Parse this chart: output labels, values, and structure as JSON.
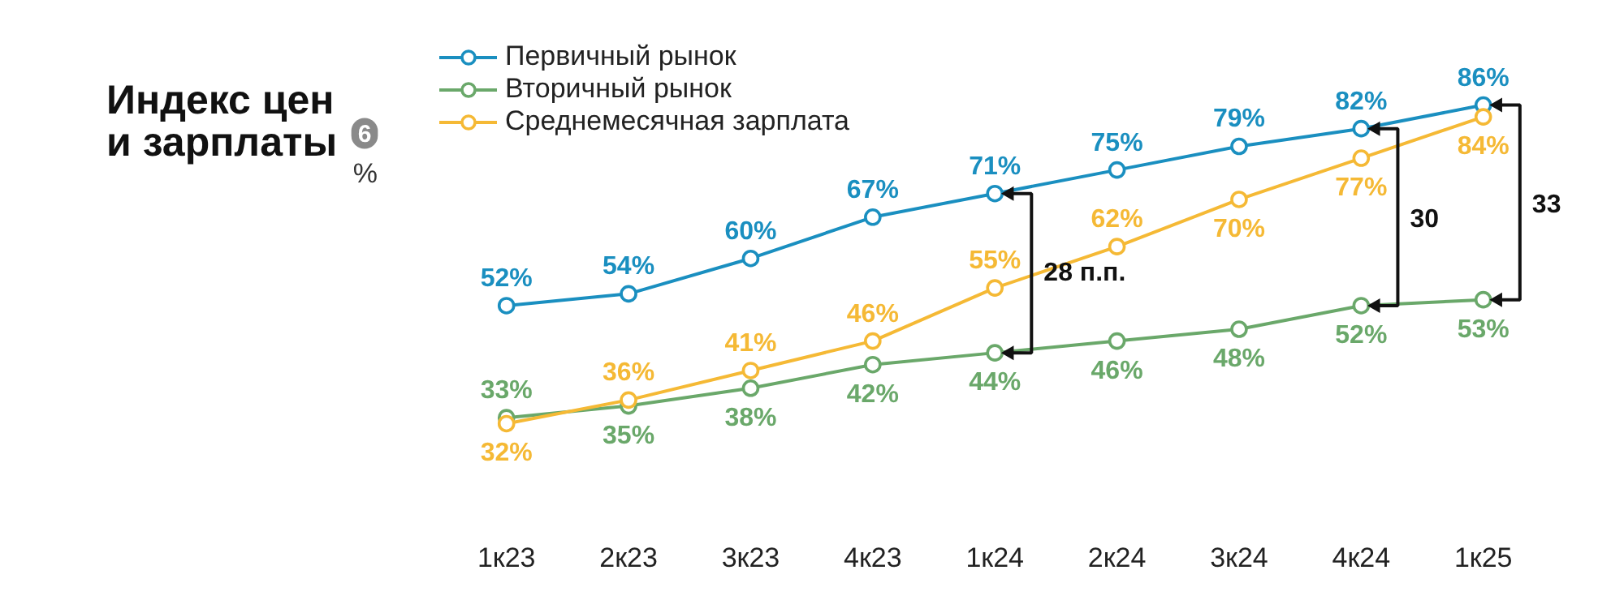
{
  "chart_data": {
    "type": "line",
    "title": "Индекс цен\nи зарплаты",
    "ylabel": "%",
    "categories": [
      "1к23",
      "2к23",
      "3к23",
      "4к23",
      "1к24",
      "2к24",
      "3к24",
      "4к24",
      "1к25"
    ],
    "series": [
      {
        "name": "Первичный рынок",
        "color": "#1a8fc0",
        "values": [
          52,
          54,
          60,
          67,
          71,
          75,
          79,
          82,
          86
        ],
        "value_labels": [
          "52%",
          "54%",
          "60%",
          "67%",
          "71%",
          "75%",
          "79%",
          "82%",
          "86%"
        ]
      },
      {
        "name": "Вторичный рынок",
        "color": "#6aa86a",
        "values": [
          33,
          35,
          38,
          42,
          44,
          46,
          48,
          52,
          53
        ],
        "value_labels": [
          "33%",
          "35%",
          "38%",
          "42%",
          "44%",
          "46%",
          "48%",
          "52%",
          "53%"
        ]
      },
      {
        "name": "Среднемесячная зарплата",
        "color": "#f5b935",
        "values": [
          32,
          36,
          41,
          46,
          55,
          62,
          70,
          77,
          84
        ],
        "value_labels": [
          "32%",
          "36%",
          "41%",
          "46%",
          "55%",
          "62%",
          "70%",
          "77%",
          "84%"
        ]
      }
    ],
    "marker": "circle",
    "line_style": "solid",
    "grid": false,
    "legend": "top left",
    "annotations": [
      "6",
      "28 п.п.",
      "30",
      "33"
    ]
  }
}
